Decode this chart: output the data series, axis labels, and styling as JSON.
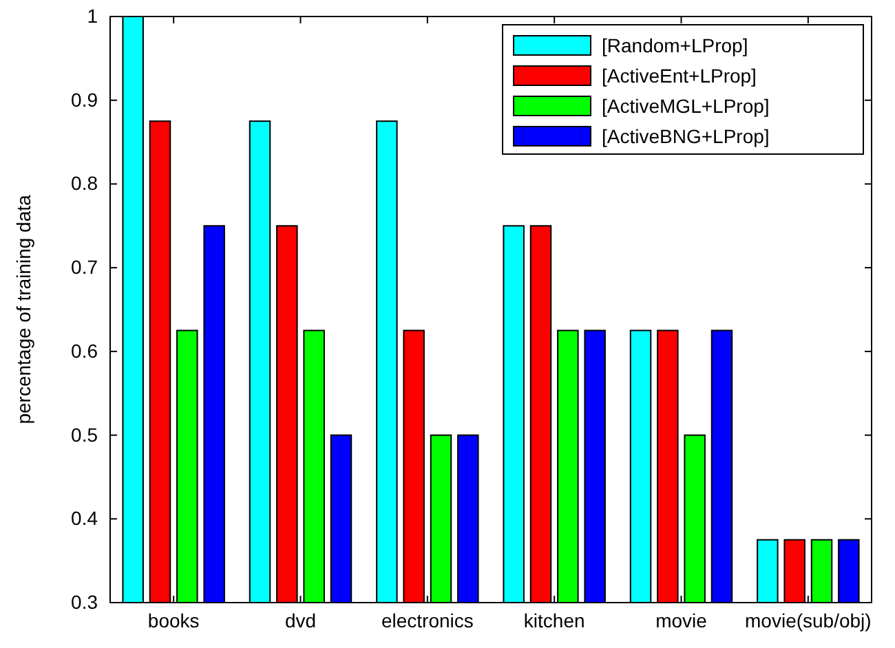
{
  "chart_data": {
    "type": "bar",
    "ylabel": "percentage of training data",
    "categories": [
      "books",
      "dvd",
      "electronics",
      "kitchen",
      "movie",
      "movie(sub/obj)"
    ],
    "series": [
      {
        "name": "[Random+LProp]",
        "color": "#00ffff",
        "values": [
          1,
          0.875,
          0.875,
          0.75,
          0.625,
          0.375
        ]
      },
      {
        "name": "[ActiveEnt+LProp]",
        "color": "#ff0000",
        "values": [
          0.875,
          0.75,
          0.625,
          0.75,
          0.625,
          0.375
        ]
      },
      {
        "name": "[ActiveMGL+LProp]",
        "color": "#00ff00",
        "values": [
          0.625,
          0.625,
          0.5,
          0.625,
          0.5,
          0.375
        ]
      },
      {
        "name": "[ActiveBNG+LProp]",
        "color": "#0000ff",
        "values": [
          0.75,
          0.5,
          0.5,
          0.625,
          0.625,
          0.375
        ]
      }
    ],
    "ylim": [
      0.3,
      1
    ],
    "yticks": [
      0.3,
      0.4,
      0.5,
      0.6,
      0.7,
      0.8,
      0.9,
      1
    ],
    "legend": "top right"
  }
}
